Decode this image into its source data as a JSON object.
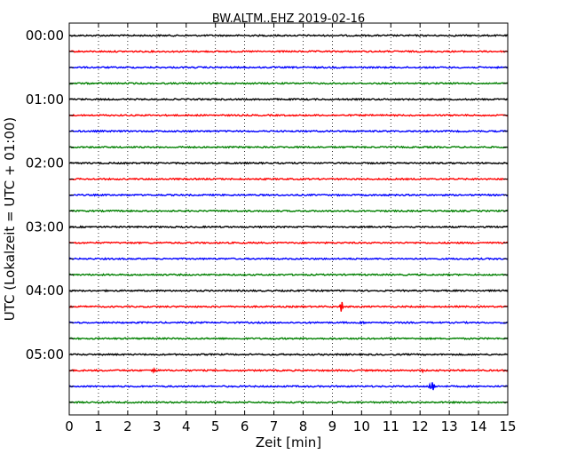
{
  "chart_data": {
    "type": "line",
    "title": "BW.ALTM..EHZ 2019-02-16",
    "xlabel": "Zeit  [min]",
    "ylabel": "UTC (Lokalzeit = UTC + 01:00)",
    "xlim": [
      0,
      15
    ],
    "xticks": [
      0,
      1,
      2,
      3,
      4,
      5,
      6,
      7,
      8,
      9,
      10,
      11,
      12,
      13,
      14,
      15
    ],
    "xtick_labels": [
      "0",
      "1",
      "2",
      "3",
      "4",
      "5",
      "6",
      "7",
      "8",
      "9",
      "10",
      "11",
      "12",
      "13",
      "14",
      "15"
    ],
    "ytick_labels": [
      "00:00",
      "01:00",
      "02:00",
      "03:00",
      "04:00",
      "05:00"
    ],
    "grid": {
      "x": true,
      "y": false,
      "style": "dotted"
    },
    "colors": [
      "#000000",
      "#ff0000",
      "#0000ff",
      "#008000"
    ],
    "traces": [
      {
        "start": "00:00",
        "color": "#000000"
      },
      {
        "start": "00:15",
        "color": "#ff0000"
      },
      {
        "start": "00:30",
        "color": "#0000ff"
      },
      {
        "start": "00:45",
        "color": "#008000"
      },
      {
        "start": "01:00",
        "color": "#000000"
      },
      {
        "start": "01:15",
        "color": "#ff0000"
      },
      {
        "start": "01:30",
        "color": "#0000ff"
      },
      {
        "start": "01:45",
        "color": "#008000"
      },
      {
        "start": "02:00",
        "color": "#000000"
      },
      {
        "start": "02:15",
        "color": "#ff0000"
      },
      {
        "start": "02:30",
        "color": "#0000ff"
      },
      {
        "start": "02:45",
        "color": "#008000"
      },
      {
        "start": "03:00",
        "color": "#000000"
      },
      {
        "start": "03:15",
        "color": "#ff0000"
      },
      {
        "start": "03:30",
        "color": "#0000ff"
      },
      {
        "start": "03:45",
        "color": "#008000"
      },
      {
        "start": "04:00",
        "color": "#000000"
      },
      {
        "start": "04:15",
        "color": "#ff0000",
        "events": [
          {
            "t": 9.33,
            "amp": 0.35
          }
        ]
      },
      {
        "start": "04:30",
        "color": "#0000ff",
        "events": [
          {
            "t": 10.0,
            "amp": 0.12
          }
        ]
      },
      {
        "start": "04:45",
        "color": "#008000"
      },
      {
        "start": "05:00",
        "color": "#000000"
      },
      {
        "start": "05:15",
        "color": "#ff0000",
        "events": [
          {
            "t": 2.9,
            "amp": 0.1
          },
          {
            "t": 12.1,
            "amp": 0.12
          }
        ]
      },
      {
        "start": "05:30",
        "color": "#0000ff",
        "events": [
          {
            "t": 6.0,
            "amp": 0.08
          },
          {
            "t": 12.4,
            "amp": 0.55
          }
        ]
      },
      {
        "start": "05:45",
        "color": "#008000"
      }
    ]
  }
}
